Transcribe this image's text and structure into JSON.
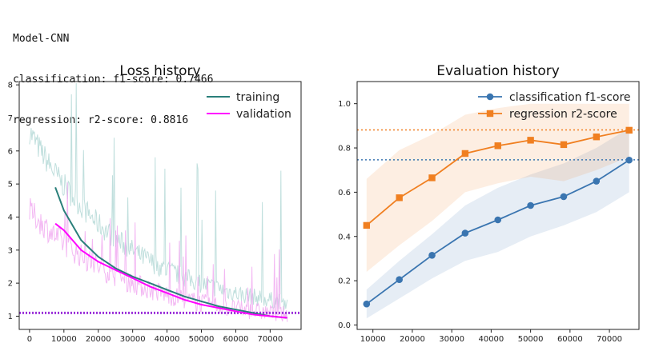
{
  "header": {
    "model_line": "Model-CNN",
    "classification_line": "classification: f1-score: 0.7466",
    "regression_line": "regression: r2-score: 0.8816"
  },
  "chart_data": [
    {
      "type": "line",
      "title": "Loss history",
      "xlim": [
        -3000,
        79000
      ],
      "ylim": [
        0.6,
        8.1
      ],
      "xticks": [
        0,
        10000,
        20000,
        30000,
        40000,
        50000,
        60000,
        70000
      ],
      "yticks": [
        1,
        2,
        3,
        4,
        5,
        6,
        7,
        8
      ],
      "reference_line": {
        "y": 1.1,
        "color": "#9b30d9",
        "style": "dotted"
      },
      "series": [
        {
          "name": "training",
          "color": "#2a7f7a",
          "x": [
            7500,
            10000,
            15000,
            20000,
            25000,
            30000,
            35000,
            40000,
            45000,
            50000,
            55000,
            60000,
            65000,
            70000,
            75000
          ],
          "y": [
            4.9,
            4.2,
            3.3,
            2.8,
            2.45,
            2.2,
            2.0,
            1.8,
            1.6,
            1.45,
            1.3,
            1.2,
            1.1,
            1.0,
            0.95
          ]
        },
        {
          "name": "validation",
          "color": "#ff00ff",
          "x": [
            7500,
            10000,
            15000,
            20000,
            25000,
            30000,
            35000,
            40000,
            45000,
            50000,
            55000,
            60000,
            65000,
            70000,
            75000
          ],
          "y": [
            3.8,
            3.6,
            3.0,
            2.65,
            2.4,
            2.15,
            1.9,
            1.7,
            1.5,
            1.35,
            1.25,
            1.15,
            1.05,
            1.0,
            0.95
          ]
        }
      ],
      "raw_series": [
        {
          "name": "training_raw",
          "color": "#b9dcd9",
          "start": 0,
          "end": 75000,
          "high": 6.6,
          "low": 1.0
        },
        {
          "name": "validation_raw",
          "color": "#f0a6f0",
          "start": 0,
          "end": 75000,
          "high": 4.2,
          "low": 0.8
        }
      ],
      "legend": "top-right"
    },
    {
      "type": "line",
      "title": "Evaluation history",
      "xlim": [
        6000,
        77500
      ],
      "ylim": [
        -0.02,
        1.1
      ],
      "xticks": [
        10000,
        20000,
        30000,
        40000,
        50000,
        60000,
        70000
      ],
      "yticks": [
        0.0,
        0.2,
        0.4,
        0.6,
        0.8,
        1.0
      ],
      "x": [
        8400,
        16700,
        25000,
        33400,
        41700,
        50000,
        58400,
        66700,
        75000
      ],
      "series": [
        {
          "name": "classification f1-score",
          "color": "#3a75b0",
          "marker": "circle",
          "values": [
            0.095,
            0.205,
            0.315,
            0.415,
            0.475,
            0.54,
            0.58,
            0.65,
            0.745
          ],
          "band_upper": [
            0.16,
            0.29,
            0.41,
            0.54,
            0.62,
            0.68,
            0.73,
            0.8,
            0.89
          ],
          "band_lower": [
            0.03,
            0.12,
            0.21,
            0.29,
            0.33,
            0.4,
            0.45,
            0.51,
            0.6
          ]
        },
        {
          "name": "regression r2-score",
          "color": "#f07f20",
          "marker": "square",
          "values": [
            0.45,
            0.575,
            0.665,
            0.775,
            0.81,
            0.835,
            0.815,
            0.85,
            0.88
          ],
          "band_upper": [
            0.66,
            0.79,
            0.86,
            0.95,
            0.98,
            1.0,
            1.0,
            1.0,
            1.0
          ],
          "band_lower": [
            0.24,
            0.36,
            0.47,
            0.6,
            0.64,
            0.67,
            0.65,
            0.7,
            0.76
          ]
        }
      ],
      "reference_lines": [
        {
          "y": 0.7466,
          "color": "#3a75b0",
          "style": "dotted"
        },
        {
          "y": 0.8816,
          "color": "#f07f20",
          "style": "dotted"
        }
      ],
      "legend": "top-right"
    }
  ]
}
